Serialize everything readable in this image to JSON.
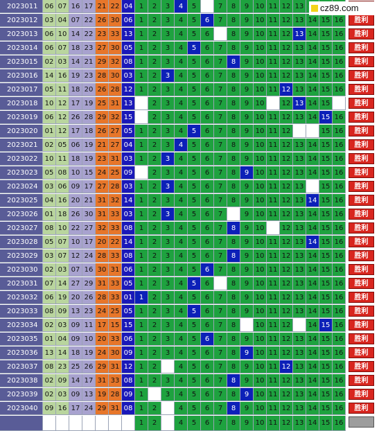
{
  "watermark": "cz89.com",
  "result_label": "胜利",
  "rows": [
    {
      "issue": "2023011",
      "nums": [
        "06",
        "07",
        "16",
        "17",
        "21",
        "22"
      ],
      "special": "04",
      "hit": 4,
      "miss": [
        6
      ]
    },
    {
      "issue": "2023012",
      "nums": [
        "03",
        "04",
        "07",
        "22",
        "26",
        "30"
      ],
      "special": "06",
      "hit": 6,
      "miss": []
    },
    {
      "issue": "2023013",
      "nums": [
        "06",
        "10",
        "14",
        "22",
        "23",
        "33"
      ],
      "special": "13",
      "hit": 13,
      "miss": [
        7
      ]
    },
    {
      "issue": "2023014",
      "nums": [
        "06",
        "07",
        "18",
        "23",
        "27",
        "30"
      ],
      "special": "05",
      "hit": 5,
      "miss": []
    },
    {
      "issue": "2023015",
      "nums": [
        "02",
        "03",
        "14",
        "21",
        "29",
        "32"
      ],
      "special": "08",
      "hit": 8,
      "miss": []
    },
    {
      "issue": "2023016",
      "nums": [
        "14",
        "16",
        "19",
        "23",
        "28",
        "30"
      ],
      "special": "03",
      "hit": 3,
      "miss": []
    },
    {
      "issue": "2023017",
      "nums": [
        "05",
        "11",
        "18",
        "20",
        "26",
        "28"
      ],
      "special": "12",
      "hit": 12,
      "miss": []
    },
    {
      "issue": "2023018",
      "nums": [
        "10",
        "12",
        "17",
        "19",
        "25",
        "31"
      ],
      "special": "13",
      "hit": 13,
      "miss": [
        1,
        11,
        16
      ]
    },
    {
      "issue": "2023019",
      "nums": [
        "06",
        "12",
        "26",
        "28",
        "29",
        "32"
      ],
      "special": "15",
      "hit": 15,
      "miss": [
        1
      ]
    },
    {
      "issue": "2023020",
      "nums": [
        "01",
        "12",
        "17",
        "18",
        "26",
        "27"
      ],
      "special": "05",
      "hit": 5,
      "miss": [
        13,
        14
      ]
    },
    {
      "issue": "2023021",
      "nums": [
        "02",
        "05",
        "06",
        "19",
        "21",
        "27"
      ],
      "special": "04",
      "hit": 4,
      "miss": []
    },
    {
      "issue": "2023022",
      "nums": [
        "10",
        "11",
        "18",
        "19",
        "23",
        "31"
      ],
      "special": "03",
      "hit": 3,
      "miss": []
    },
    {
      "issue": "2023023",
      "nums": [
        "05",
        "08",
        "10",
        "15",
        "24",
        "25"
      ],
      "special": "09",
      "hit": 9,
      "miss": [
        1
      ]
    },
    {
      "issue": "2023024",
      "nums": [
        "03",
        "06",
        "09",
        "17",
        "27",
        "28"
      ],
      "special": "03",
      "hit": 3,
      "miss": [
        14
      ]
    },
    {
      "issue": "2023025",
      "nums": [
        "04",
        "16",
        "20",
        "21",
        "31",
        "32"
      ],
      "special": "14",
      "hit": 14,
      "miss": []
    },
    {
      "issue": "2023026",
      "nums": [
        "01",
        "18",
        "26",
        "30",
        "31",
        "33"
      ],
      "special": "03",
      "hit": 3,
      "miss": [
        8
      ]
    },
    {
      "issue": "2023027",
      "nums": [
        "08",
        "10",
        "22",
        "27",
        "32",
        "33"
      ],
      "special": "08",
      "hit": 8,
      "miss": [
        11
      ]
    },
    {
      "issue": "2023028",
      "nums": [
        "05",
        "07",
        "10",
        "17",
        "20",
        "22"
      ],
      "special": "14",
      "hit": 14,
      "miss": []
    },
    {
      "issue": "2023029",
      "nums": [
        "03",
        "07",
        "12",
        "24",
        "28",
        "33"
      ],
      "special": "08",
      "hit": 8,
      "miss": []
    },
    {
      "issue": "2023030",
      "nums": [
        "02",
        "03",
        "07",
        "16",
        "30",
        "31"
      ],
      "special": "06",
      "hit": 6,
      "miss": []
    },
    {
      "issue": "2023031",
      "nums": [
        "07",
        "14",
        "27",
        "29",
        "31",
        "33"
      ],
      "special": "05",
      "hit": 5,
      "miss": [
        7
      ]
    },
    {
      "issue": "2023032",
      "nums": [
        "06",
        "19",
        "20",
        "26",
        "28",
        "33"
      ],
      "special": "01",
      "hit": 1,
      "miss": []
    },
    {
      "issue": "2023033",
      "nums": [
        "08",
        "09",
        "13",
        "23",
        "24",
        "25"
      ],
      "special": "05",
      "hit": 5,
      "miss": []
    },
    {
      "issue": "2023034",
      "nums": [
        "02",
        "03",
        "09",
        "11",
        "17",
        "15"
      ],
      "special": "15",
      "hit": 15,
      "miss": [
        9,
        13
      ]
    },
    {
      "issue": "2023035",
      "nums": [
        "01",
        "04",
        "09",
        "10",
        "20",
        "33"
      ],
      "special": "06",
      "hit": 6,
      "miss": []
    },
    {
      "issue": "2023036",
      "nums": [
        "13",
        "14",
        "18",
        "19",
        "24",
        "30"
      ],
      "special": "09",
      "hit": 9,
      "miss": []
    },
    {
      "issue": "2023037",
      "nums": [
        "08",
        "23",
        "25",
        "26",
        "29",
        "31"
      ],
      "special": "12",
      "hit": 12,
      "miss": [
        3
      ]
    },
    {
      "issue": "2023038",
      "nums": [
        "02",
        "09",
        "14",
        "17",
        "31",
        "33"
      ],
      "special": "08",
      "hit": 8,
      "miss": []
    },
    {
      "issue": "2023039",
      "nums": [
        "02",
        "03",
        "09",
        "13",
        "19",
        "28"
      ],
      "special": "09",
      "hit": 9,
      "miss": [
        2
      ]
    },
    {
      "issue": "2023040",
      "nums": [
        "09",
        "16",
        "17",
        "24",
        "29",
        "31"
      ],
      "special": "08",
      "hit": 8,
      "miss": [
        3
      ]
    }
  ],
  "footer_miss": [
    3
  ]
}
